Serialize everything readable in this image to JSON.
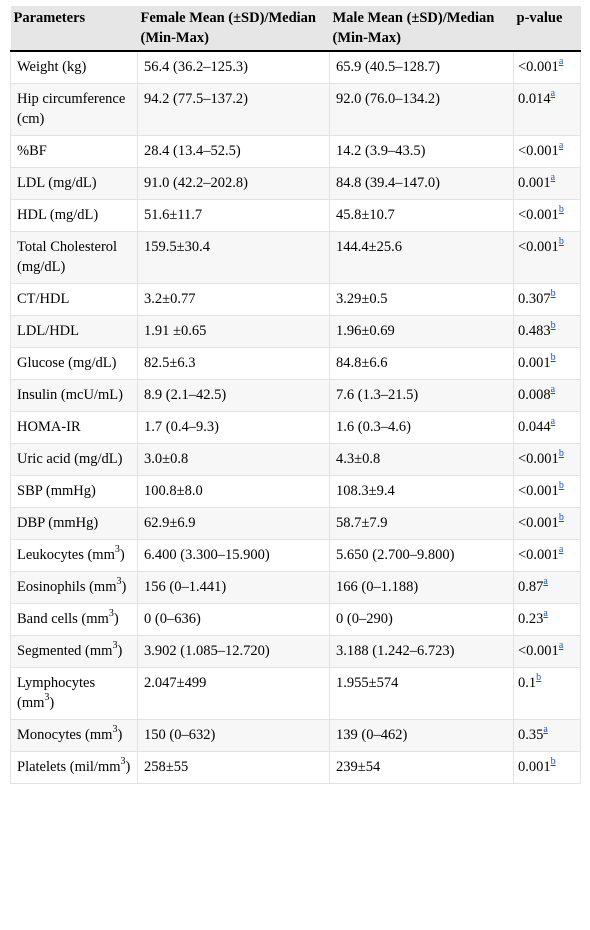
{
  "headers": [
    "Parameters",
    "Female Mean (±SD)/Median (Min-Max)",
    "Male Mean (±SD)/Median (Min-Max)",
    "p-value"
  ],
  "rows": [
    {
      "param": "Weight (kg)",
      "female": "56.4 (36.2–125.3)",
      "male": "65.9 (40.5–128.7)",
      "p": "<0.001",
      "note": "a"
    },
    {
      "param": "Hip circumference (cm)",
      "female": "94.2 (77.5–137.2)",
      "male": "92.0 (76.0–134.2)",
      "p": "0.014",
      "note": "a"
    },
    {
      "param": "%BF",
      "female": "28.4 (13.4–52.5)",
      "male": "14.2 (3.9–43.5)",
      "p": "<0.001",
      "note": "a"
    },
    {
      "param": "LDL (mg/dL)",
      "female": "91.0 (42.2–202.8)",
      "male": "84.8 (39.4–147.0)",
      "p": "0.001",
      "note": "a"
    },
    {
      "param": "HDL (mg/dL)",
      "female": "51.6±11.7",
      "male": "45.8±10.7",
      "p": "<0.001",
      "note": "b"
    },
    {
      "param": "Total Cholesterol (mg/dL)",
      "female": "159.5±30.4",
      "male": "144.4±25.6",
      "p": "<0.001",
      "note": "b"
    },
    {
      "param": "CT/HDL",
      "female": "3.2±0.77",
      "male": "3.29±0.5",
      "p": "0.307",
      "note": "b"
    },
    {
      "param": "LDL/HDL",
      "female": "1.91 ±0.65",
      "male": "1.96±0.69",
      "p": "0.483",
      "note": "b"
    },
    {
      "param": "Glucose (mg/dL)",
      "female": "82.5±6.3",
      "male": "84.8±6.6",
      "p": "0.001",
      "note": "b"
    },
    {
      "param": "Insulin (mcU/mL)",
      "female": "8.9 (2.1–42.5)",
      "male": "7.6 (1.3–21.5)",
      "p": "0.008",
      "note": "a"
    },
    {
      "param": "HOMA-IR",
      "female": "1.7 (0.4–9.3)",
      "male": "1.6 (0.3–4.6)",
      "p": "0.044",
      "note": "a"
    },
    {
      "param": "Uric acid (mg/dL)",
      "female": "3.0±0.8",
      "male": "4.3±0.8",
      "p": "<0.001",
      "note": "b"
    },
    {
      "param": "SBP (mmHg)",
      "female": "100.8±8.0",
      "male": "108.3±9.4",
      "p": "<0.001",
      "note": "b"
    },
    {
      "param": "DBP (mmHg)",
      "female": "62.9±6.9",
      "male": "58.7±7.9",
      "p": "<0.001",
      "note": "b"
    },
    {
      "param": "Leukocytes (mm",
      "param_sup": "3",
      "param_tail": ")",
      "female": "6.400 (3.300–15.900)",
      "male": "5.650 (2.700–9.800)",
      "p": "<0.001",
      "note": "a"
    },
    {
      "param": "Eosinophils (mm",
      "param_sup": "3",
      "param_tail": ")",
      "female": "156 (0–1.441)",
      "male": "166 (0–1.188)",
      "p": "0.87",
      "note": "a"
    },
    {
      "param": "Band cells (mm",
      "param_sup": "3",
      "param_tail": ")",
      "female": "0 (0–636)",
      "male": "0 (0–290)",
      "p": "0.23",
      "note": "a"
    },
    {
      "param": "Segmented (mm",
      "param_sup": "3",
      "param_tail": ")",
      "female": "3.902 (1.085–12.720)",
      "male": "3.188 (1.242–6.723)",
      "p": "<0.001",
      "note": "a"
    },
    {
      "param": "Lymphocytes (mm",
      "param_sup": "3",
      "param_tail": ")",
      "female": "2.047±499",
      "male": "1.955±574",
      "p": "0.1",
      "note": "b"
    },
    {
      "param": "Monocytes (mm",
      "param_sup": "3",
      "param_tail": ")",
      "female": "150 (0–632)",
      "male": "139 (0–462)",
      "p": "0.35",
      "note": "a"
    },
    {
      "param": "Platelets (mil/mm",
      "param_sup": "3",
      "param_tail": ")",
      "female": "258±55",
      "male": "239±54",
      "p": "0.001",
      "note": "b"
    }
  ]
}
